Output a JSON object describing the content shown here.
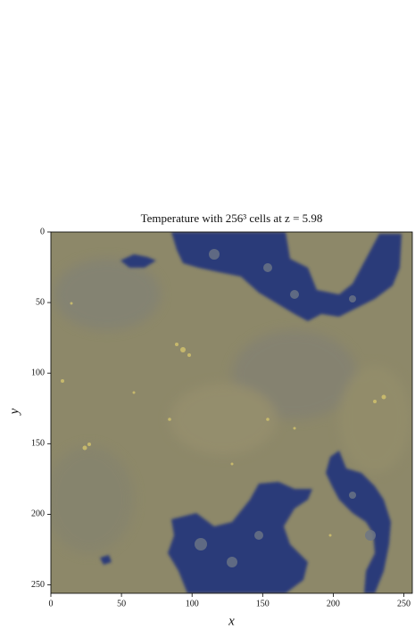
{
  "chart_data": {
    "type": "image",
    "title": "Temperature with 256³ cells at z = 5.98",
    "xlabel": "x",
    "ylabel": "y",
    "xlim": [
      0,
      256
    ],
    "ylim": [
      256,
      0
    ],
    "xticks": [
      0,
      50,
      100,
      150,
      200,
      250
    ],
    "yticks": [
      0,
      50,
      100,
      150,
      200,
      250
    ]
  }
}
